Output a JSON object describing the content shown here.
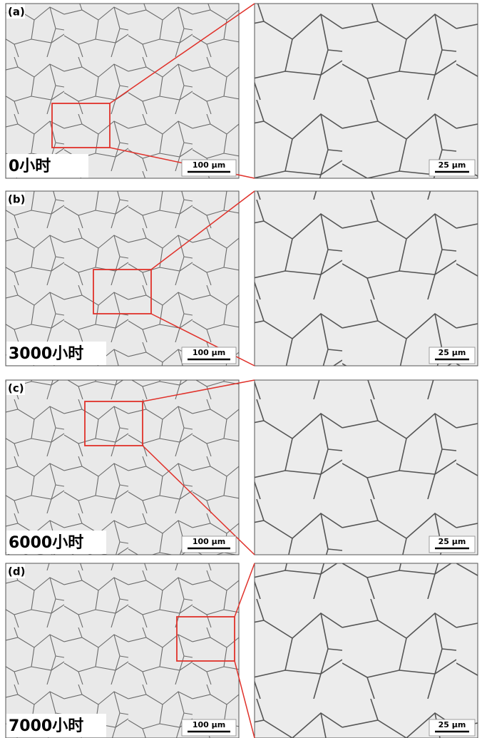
{
  "panels": [
    {
      "label": "(a)",
      "time": "0小时",
      "scale_left": "100 μm",
      "scale_right": "25 μm"
    },
    {
      "label": "(b)",
      "time": "3000小时",
      "scale_left": "100 μm",
      "scale_right": "25 μm"
    },
    {
      "label": "(c)",
      "time": "6000小时",
      "scale_left": "100 μm",
      "scale_right": "25 μm"
    },
    {
      "label": "(d)",
      "time": "7000小时",
      "scale_left": "100 μm",
      "scale_right": "25 μm"
    }
  ]
}
